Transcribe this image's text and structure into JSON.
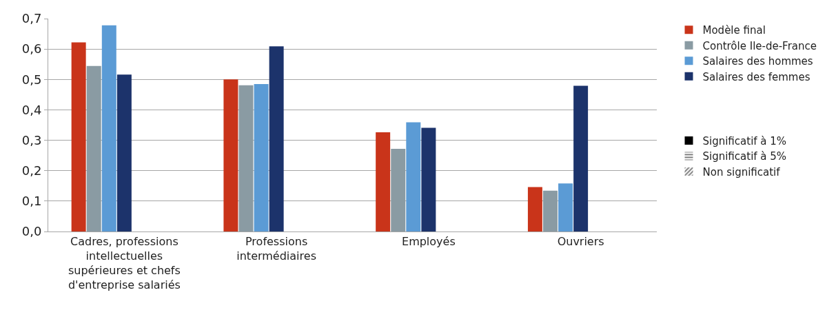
{
  "chart_data": {
    "type": "bar",
    "categories": [
      "Cadres, professions intellectuelles supérieures et chefs d'entreprise salariés",
      "Professions intermédiaires",
      "Employés",
      "Ouvriers"
    ],
    "series": [
      {
        "name": "Modèle final",
        "color": "#c9341a",
        "values": [
          0.622,
          0.5,
          0.326,
          0.146
        ]
      },
      {
        "name": "Contrôle Ile-de-France",
        "color": "#8a9ba3",
        "values": [
          0.544,
          0.481,
          0.272,
          0.134
        ]
      },
      {
        "name": "Salaires des hommes",
        "color": "#5b9bd5",
        "values": [
          0.678,
          0.485,
          0.359,
          0.158
        ]
      },
      {
        "name": "Salaires des femmes",
        "color": "#1c336b",
        "values": [
          0.516,
          0.609,
          0.341,
          0.479
        ]
      },
      {
        "name": "Significatif à 1%",
        "color": "#000000",
        "values": [
          null,
          null,
          null,
          null
        ]
      },
      {
        "name": "Significatif à 5%",
        "color": "#000000",
        "values": [
          null,
          null,
          null,
          null
        ]
      },
      {
        "name": "Non significatif",
        "color": "#000000",
        "values": [
          null,
          null,
          null,
          null
        ]
      }
    ],
    "ylim": [
      0,
      0.7
    ],
    "yticks": [
      {
        "value": 0,
        "label": "0,0"
      },
      {
        "value": 0.1,
        "label": "0,1"
      },
      {
        "value": 0.2,
        "label": "0,2"
      },
      {
        "value": 0.3,
        "label": "0,3"
      },
      {
        "value": 0.4,
        "label": "0,4"
      },
      {
        "value": 0.5,
        "label": "0,5"
      },
      {
        "value": 0.6,
        "label": "0,6"
      },
      {
        "value": 0.7,
        "label": "0,7"
      }
    ],
    "grid": "y",
    "legend": "right"
  }
}
